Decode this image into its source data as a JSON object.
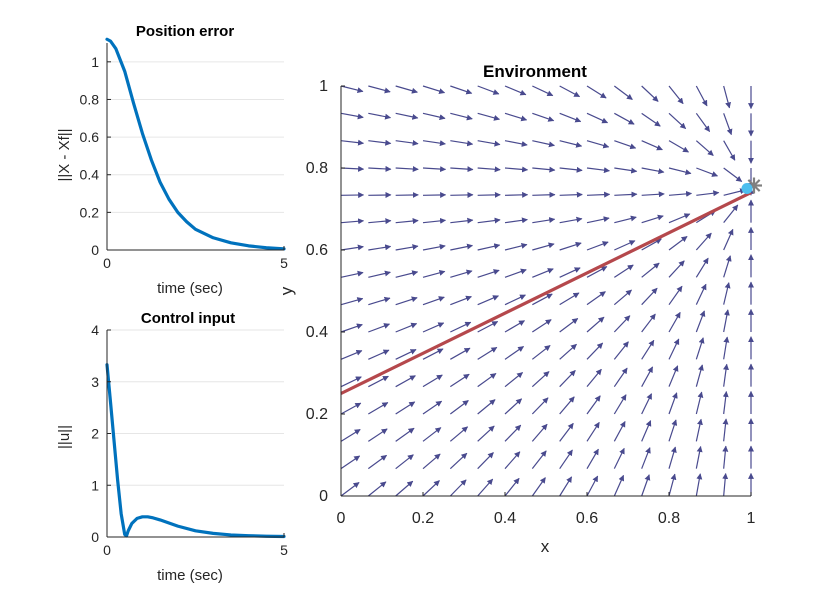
{
  "chart_data": [
    {
      "type": "line",
      "title": "Position error",
      "xlabel": "time (sec)",
      "ylabel": "||X - Xf||",
      "xlim": [
        0,
        5
      ],
      "ylim": [
        0,
        1.1
      ],
      "xticks": [
        0,
        5
      ],
      "xtick_labels": [
        "0",
        "5"
      ],
      "yticks": [
        0,
        0.2,
        0.4,
        0.6,
        0.8,
        1
      ],
      "ytick_labels": [
        "0",
        "0.2",
        "0.4",
        "0.6",
        "0.8",
        "1"
      ],
      "grid": "y",
      "series": [
        {
          "name": "position error",
          "color": "#0072bd",
          "x": [
            0,
            0.1,
            0.25,
            0.5,
            0.75,
            1,
            1.25,
            1.5,
            1.75,
            2,
            2.25,
            2.5,
            3,
            3.5,
            4,
            4.5,
            5
          ],
          "y": [
            1.12,
            1.11,
            1.07,
            0.95,
            0.78,
            0.62,
            0.48,
            0.36,
            0.27,
            0.2,
            0.15,
            0.11,
            0.065,
            0.038,
            0.022,
            0.012,
            0.006
          ]
        }
      ]
    },
    {
      "type": "line",
      "title": "Control input",
      "xlabel": "time (sec)",
      "ylabel": "||u||",
      "xlim": [
        0,
        5
      ],
      "ylim": [
        0,
        4
      ],
      "xticks": [
        0,
        5
      ],
      "xtick_labels": [
        "0",
        "5"
      ],
      "yticks": [
        0,
        1,
        2,
        3,
        4
      ],
      "ytick_labels": [
        "0",
        "1",
        "2",
        "3",
        "4"
      ],
      "grid": "y",
      "series": [
        {
          "name": "control input",
          "color": "#0072bd",
          "x": [
            0,
            0.1,
            0.2,
            0.3,
            0.4,
            0.5,
            0.55,
            0.6,
            0.7,
            0.85,
            1,
            1.15,
            1.3,
            1.5,
            1.75,
            2,
            2.5,
            3,
            3.5,
            4,
            4.5,
            5
          ],
          "y": [
            3.33,
            2.6,
            1.85,
            1.1,
            0.45,
            0.05,
            0.02,
            0.12,
            0.26,
            0.36,
            0.39,
            0.39,
            0.37,
            0.33,
            0.27,
            0.21,
            0.12,
            0.07,
            0.04,
            0.025,
            0.015,
            0.01
          ]
        }
      ]
    },
    {
      "type": "quiver",
      "title": "Environment",
      "xlabel": "x",
      "ylabel": "y",
      "xlim": [
        0,
        1
      ],
      "ylim": [
        0,
        1
      ],
      "xticks": [
        0,
        0.2,
        0.4,
        0.6,
        0.8,
        1
      ],
      "xtick_labels": [
        "0",
        "0.2",
        "0.4",
        "0.6",
        "0.8",
        "1"
      ],
      "yticks": [
        0,
        0.2,
        0.4,
        0.6,
        0.8,
        1
      ],
      "ytick_labels": [
        "0",
        "0.2",
        "0.4",
        "0.6",
        "0.8",
        "1"
      ],
      "grid": "none",
      "vector_field": {
        "color": "#494a8e",
        "grid_x_start": 0,
        "grid_x_end": 1,
        "grid_x_count": 16,
        "grid_y_start": 0,
        "grid_y_end": 1,
        "grid_y_count": 16,
        "goal": [
          1,
          0.75
        ],
        "max_length": 0.055
      },
      "trajectory": {
        "color": "#b5484c",
        "x": [
          0,
          1
        ],
        "y": [
          0.25,
          0.74
        ]
      },
      "start_point": {
        "x": 1,
        "y": 0.75,
        "color": "#4dbeee"
      },
      "goal_marker": {
        "x": 1.0,
        "y": 0.75,
        "color": "#808080",
        "symbol": "*"
      }
    }
  ]
}
